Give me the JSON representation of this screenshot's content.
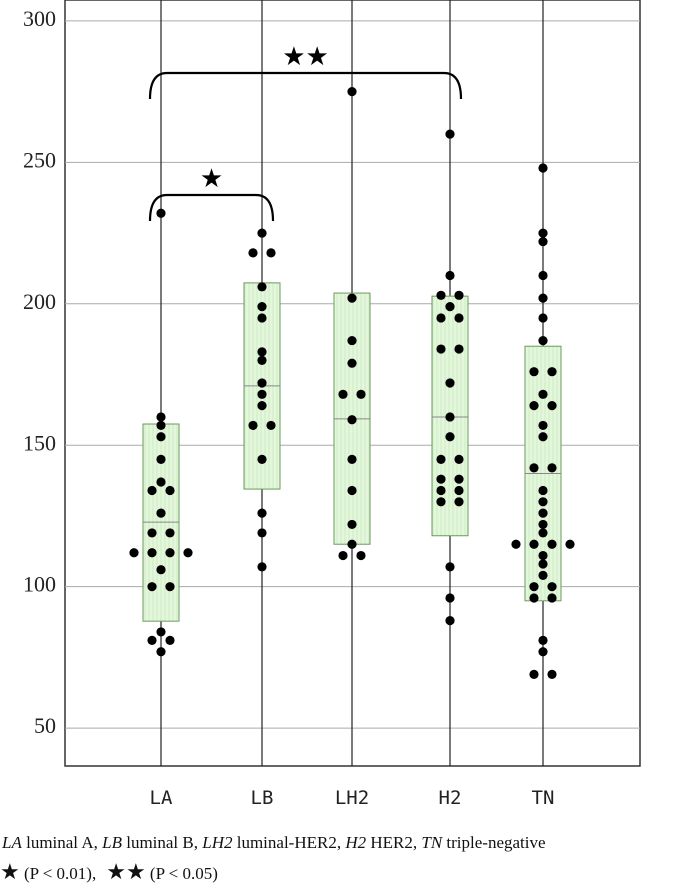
{
  "chart_data": {
    "type": "dotbox",
    "categories": [
      "LA",
      "LB",
      "LH2",
      "H2",
      "TN"
    ],
    "points": [
      [
        232,
        160,
        157,
        153,
        145,
        137,
        134,
        134,
        126,
        119,
        119,
        112,
        112,
        112,
        112,
        106,
        100,
        100,
        84,
        81,
        81,
        77
      ],
      [
        225,
        218,
        218,
        206,
        199,
        195,
        183,
        180,
        172,
        168,
        164,
        157,
        157,
        145,
        126,
        119,
        107
      ],
      [
        275,
        202,
        187,
        179,
        168,
        168,
        159,
        145,
        134,
        122,
        115,
        111,
        111
      ],
      [
        260,
        210,
        203,
        203,
        199,
        195,
        195,
        184,
        184,
        172,
        160,
        153,
        145,
        145,
        138,
        138,
        134,
        134,
        130,
        130,
        107,
        96,
        88
      ],
      [
        248,
        225,
        222,
        210,
        202,
        195,
        187,
        176,
        176,
        168,
        164,
        164,
        157,
        153,
        142,
        142,
        134,
        130,
        126,
        122,
        119,
        115,
        115,
        115,
        115,
        111,
        108,
        104,
        100,
        100,
        96,
        96,
        81,
        77,
        69,
        69
      ]
    ],
    "box_upper": [
      157.5,
      207.4,
      203.8,
      202.7,
      185
    ],
    "box_lower": [
      87.8,
      134.5,
      115,
      118,
      95
    ],
    "mean": [
      122.8,
      171,
      159.3,
      160,
      140
    ],
    "ylim": [
      36.6,
      307.4
    ],
    "yticks": [
      50,
      100,
      150,
      200,
      250,
      300
    ],
    "grid": true,
    "point_color": "#000000",
    "box_color": "#e4f6dc",
    "significance": [
      {
        "from": 0,
        "to": 1,
        "label": "★"
      },
      {
        "from": 0,
        "to": 3,
        "label": "★★"
      }
    ],
    "caption": [
      {
        "abbr": "LA",
        "name": " luminal A, "
      },
      {
        "abbr": "LB",
        "name": " luminal B, "
      },
      {
        "abbr": "LH2",
        "name": " luminal-HER2, "
      },
      {
        "abbr": "H2",
        "name": " HER2, "
      },
      {
        "abbr": "TN",
        "name": " triple-negative"
      }
    ],
    "legend": [
      {
        "symbol": "★",
        "text": "  (P < 0.01),"
      },
      {
        "symbol": "★★",
        "text": "  (P < 0.05)"
      }
    ]
  }
}
